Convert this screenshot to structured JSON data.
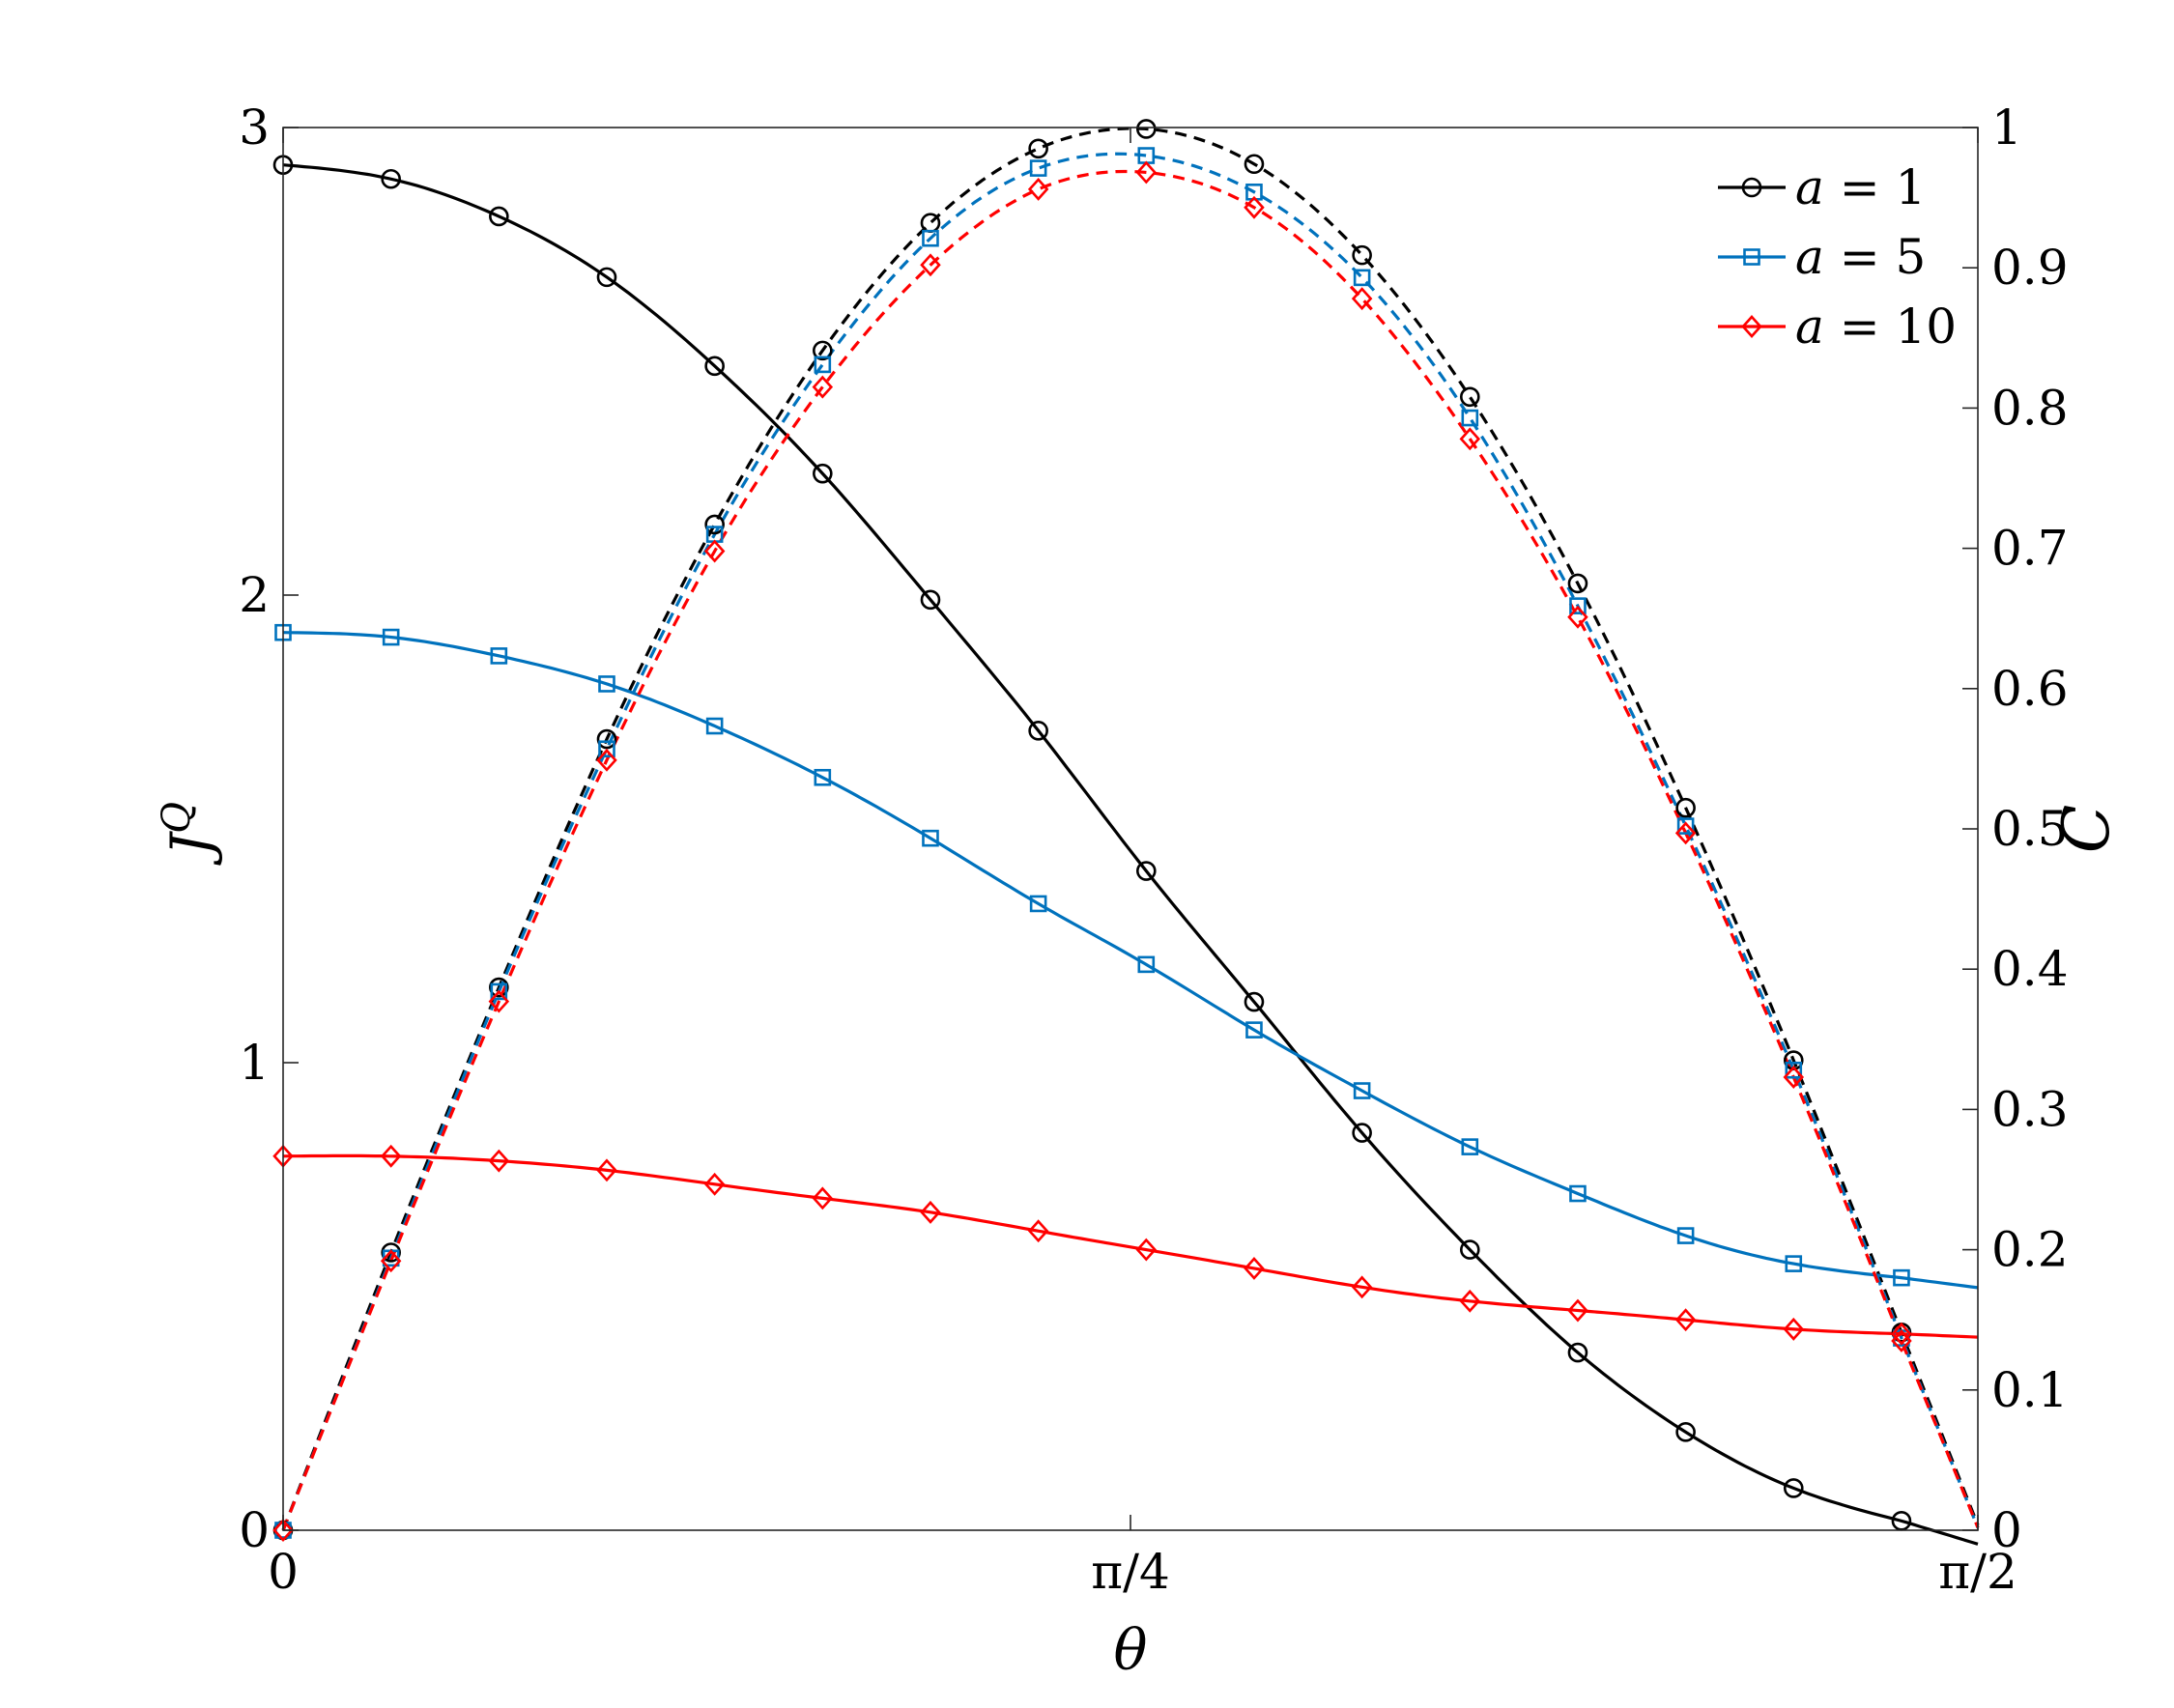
{
  "chart_data": {
    "type": "line",
    "x_ticks": [
      {
        "value": 0,
        "label": "0"
      },
      {
        "value": 0.7853981634,
        "label": "π/4"
      },
      {
        "value": 1.5707963268,
        "label": "π/2"
      }
    ],
    "xlabel": "θ",
    "ylabel_left": {
      "base": "J",
      "sup": "Q"
    },
    "ylabel_right": "C",
    "xlim": [
      0,
      1.5707963268
    ],
    "ylim_left": [
      0,
      3
    ],
    "ylim_right": [
      0,
      1
    ],
    "left_ticks": [
      "0",
      "1",
      "2",
      "3"
    ],
    "right_ticks": [
      "0",
      "0.1",
      "0.2",
      "0.3",
      "0.4",
      "0.5",
      "0.6",
      "0.7",
      "0.8",
      "0.9",
      "1"
    ],
    "grid": false,
    "legend_position": "top-right",
    "x": [
      0,
      0.1,
      0.2,
      0.3,
      0.4,
      0.5,
      0.6,
      0.7,
      0.8,
      0.9,
      1.0,
      1.1,
      1.2,
      1.3,
      1.4,
      1.5
    ],
    "series": [
      {
        "name": "a = 1",
        "legend_var": "a",
        "legend_eq": " = 1",
        "color": "#000000",
        "marker": "circle",
        "J": [
          2.92,
          2.89,
          2.81,
          2.68,
          2.49,
          2.26,
          1.99,
          1.71,
          1.41,
          1.13,
          0.85,
          0.6,
          0.38,
          0.21,
          0.09,
          0.02
        ],
        "C": [
          0,
          0.198,
          0.387,
          0.564,
          0.717,
          0.841,
          0.932,
          0.985,
          0.999,
          0.974,
          0.909,
          0.808,
          0.675,
          0.515,
          0.335,
          0.141
        ]
      },
      {
        "name": "a = 5",
        "legend_var": "a",
        "legend_eq": " = 5",
        "color": "#0072BD",
        "marker": "square",
        "J": [
          1.92,
          1.91,
          1.87,
          1.81,
          1.72,
          1.61,
          1.48,
          1.34,
          1.21,
          1.07,
          0.94,
          0.82,
          0.72,
          0.63,
          0.57,
          0.54
        ],
        "C": [
          0,
          0.194,
          0.384,
          0.557,
          0.71,
          0.831,
          0.921,
          0.971,
          0.98,
          0.954,
          0.893,
          0.793,
          0.659,
          0.502,
          0.328,
          0.137
        ]
      },
      {
        "name": "a = 10",
        "legend_var": "a",
        "legend_eq": " = 10",
        "color": "#FF0000",
        "marker": "diamond",
        "J": [
          0.8,
          0.8,
          0.79,
          0.77,
          0.74,
          0.71,
          0.68,
          0.64,
          0.6,
          0.56,
          0.52,
          0.49,
          0.47,
          0.45,
          0.43,
          0.42
        ],
        "C": [
          0,
          0.192,
          0.377,
          0.549,
          0.698,
          0.815,
          0.902,
          0.956,
          0.968,
          0.943,
          0.878,
          0.778,
          0.651,
          0.497,
          0.323,
          0.135
        ]
      }
    ]
  }
}
